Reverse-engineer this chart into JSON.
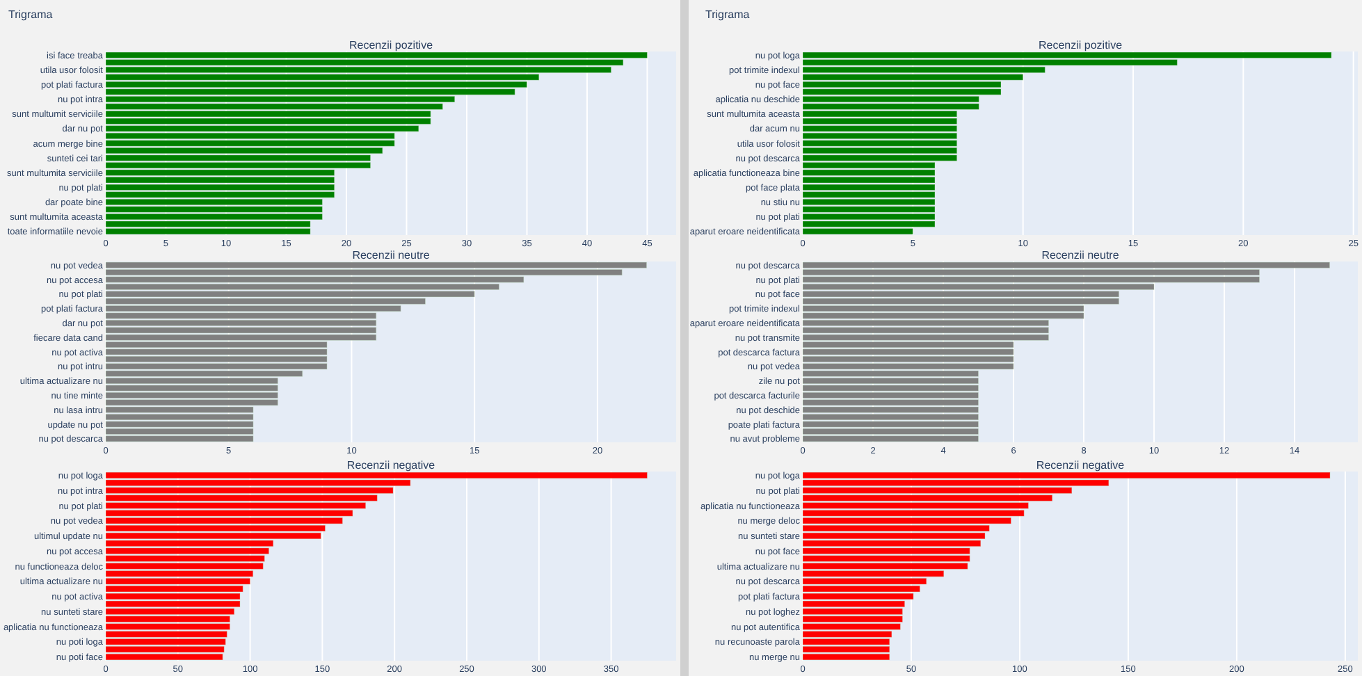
{
  "chart_data": [
    {
      "type": "bar",
      "orientation": "horizontal",
      "title": "Trigrama",
      "subtitle": "Recenzii pozitive",
      "grid": "x",
      "categories": [
        "isi face treaba",
        null,
        "utila usor folosit",
        null,
        "pot plati factura",
        null,
        "nu pot intra",
        null,
        "sunt multumit serviciile",
        null,
        "dar nu pot",
        null,
        "acum merge bine",
        null,
        "sunteti cei tari",
        null,
        "sunt multumita serviciile",
        null,
        "nu pot plati",
        null,
        "dar poate bine",
        null,
        "sunt multumita aceasta",
        null,
        "toate informatiile nevoie"
      ],
      "values": [
        45,
        43,
        42,
        36,
        35,
        34,
        29,
        28,
        27,
        27,
        26,
        24,
        24,
        23,
        22,
        22,
        19,
        19,
        19,
        19,
        18,
        18,
        18,
        17,
        17
      ],
      "color": "#008000",
      "xlim": [
        0,
        47.4
      ],
      "xticks": [
        0,
        5,
        10,
        15,
        20,
        25,
        30,
        35,
        40,
        45
      ]
    },
    {
      "type": "bar",
      "orientation": "horizontal",
      "title": "Trigrama",
      "subtitle": "Recenzii pozitive",
      "grid": "x",
      "categories": [
        "nu pot loga",
        null,
        "pot trimite indexul",
        null,
        "nu pot face",
        null,
        "aplicatia nu deschide",
        null,
        "sunt multumita aceasta",
        null,
        "dar acum nu",
        null,
        "utila usor folosit",
        null,
        "nu pot descarca",
        null,
        "aplicatia functioneaza bine",
        null,
        "pot face plata",
        null,
        "nu stiu nu",
        null,
        "nu pot plati",
        null,
        "aparut eroare neidentificata"
      ],
      "values": [
        24,
        17,
        11,
        10,
        9,
        9,
        8,
        8,
        7,
        7,
        7,
        7,
        7,
        7,
        7,
        6,
        6,
        6,
        6,
        6,
        6,
        6,
        6,
        6,
        5
      ],
      "color": "#008000",
      "xlim": [
        0,
        25.2
      ],
      "xticks": [
        0,
        5,
        10,
        15,
        20,
        25
      ]
    },
    {
      "type": "bar",
      "orientation": "horizontal",
      "title": "Recenzii neutre",
      "grid": "x",
      "categories": [
        "nu pot vedea",
        null,
        "nu pot accesa",
        null,
        "nu pot plati",
        null,
        "pot plati factura",
        null,
        "dar nu pot",
        null,
        "fiecare data cand",
        null,
        "nu pot activa",
        null,
        "nu pot intru",
        null,
        "ultima actualizare nu",
        null,
        "nu tine minte",
        null,
        "nu lasa intru",
        null,
        "update nu pot",
        null,
        "nu pot descarca"
      ],
      "values": [
        22,
        21,
        17,
        16,
        15,
        13,
        12,
        11,
        11,
        11,
        11,
        9,
        9,
        9,
        9,
        8,
        7,
        7,
        7,
        7,
        6,
        6,
        6,
        6,
        6
      ],
      "color": "#808080",
      "xlim": [
        0,
        23.2
      ],
      "xticks": [
        0,
        5,
        10,
        15,
        20
      ]
    },
    {
      "type": "bar",
      "orientation": "horizontal",
      "title": "Recenzii neutre",
      "grid": "x",
      "categories": [
        "nu pot descarca",
        null,
        "nu pot plati",
        null,
        "nu pot face",
        null,
        "pot trimite indexul",
        null,
        "aparut eroare neidentificata",
        null,
        "nu pot transmite",
        null,
        "pot descarca factura",
        null,
        "nu pot vedea",
        null,
        "zile nu pot",
        null,
        "pot descarca facturile",
        null,
        "nu pot deschide",
        null,
        "poate plati factura",
        null,
        "nu avut probleme"
      ],
      "values": [
        15,
        13,
        13,
        10,
        9,
        9,
        8,
        8,
        7,
        7,
        7,
        6,
        6,
        6,
        6,
        5,
        5,
        5,
        5,
        5,
        5,
        5,
        5,
        5,
        5
      ],
      "color": "#808080",
      "xlim": [
        0,
        15.8
      ],
      "xticks": [
        0,
        2,
        4,
        6,
        8,
        10,
        12,
        14
      ]
    },
    {
      "type": "bar",
      "orientation": "horizontal",
      "title": "Recenzii negative",
      "grid": "x",
      "categories": [
        "nu pot loga",
        null,
        "nu pot intra",
        null,
        "nu pot plati",
        null,
        "nu pot vedea",
        null,
        "ultimul update nu",
        null,
        "nu pot accesa",
        null,
        "nu functioneaza deloc",
        null,
        "ultima actualizare nu",
        null,
        "nu pot activa",
        null,
        "nu sunteti stare",
        null,
        "aplicatia nu functioneaza",
        null,
        "nu poti loga",
        null,
        "nu poti face"
      ],
      "values": [
        375,
        211,
        199,
        188,
        180,
        171,
        164,
        152,
        149,
        116,
        113,
        110,
        109,
        102,
        100,
        95,
        93,
        93,
        89,
        86,
        86,
        84,
        83,
        82,
        81
      ],
      "color": "#ff0000",
      "xlim": [
        0,
        395
      ],
      "xticks": [
        0,
        50,
        100,
        150,
        200,
        250,
        300,
        350
      ]
    },
    {
      "type": "bar",
      "orientation": "horizontal",
      "title": "Recenzii negative",
      "grid": "x",
      "categories": [
        "nu pot loga",
        null,
        "nu pot plati",
        null,
        "aplicatia nu functioneaza",
        null,
        "nu merge deloc",
        null,
        "nu sunteti stare",
        null,
        "nu pot face",
        null,
        "ultima actualizare nu",
        null,
        "nu pot descarca",
        null,
        "pot plati factura",
        null,
        "nu pot loghez",
        null,
        "nu pot autentifica",
        null,
        "nu recunoaste parola",
        null,
        "nu merge nu"
      ],
      "values": [
        243,
        141,
        124,
        115,
        104,
        102,
        96,
        86,
        84,
        82,
        77,
        77,
        76,
        65,
        57,
        54,
        51,
        47,
        46,
        46,
        45,
        41,
        40,
        40,
        40
      ],
      "color": "#ff0000",
      "xlim": [
        0,
        255.8
      ],
      "xticks": [
        0,
        50,
        100,
        150,
        200,
        250
      ]
    }
  ]
}
